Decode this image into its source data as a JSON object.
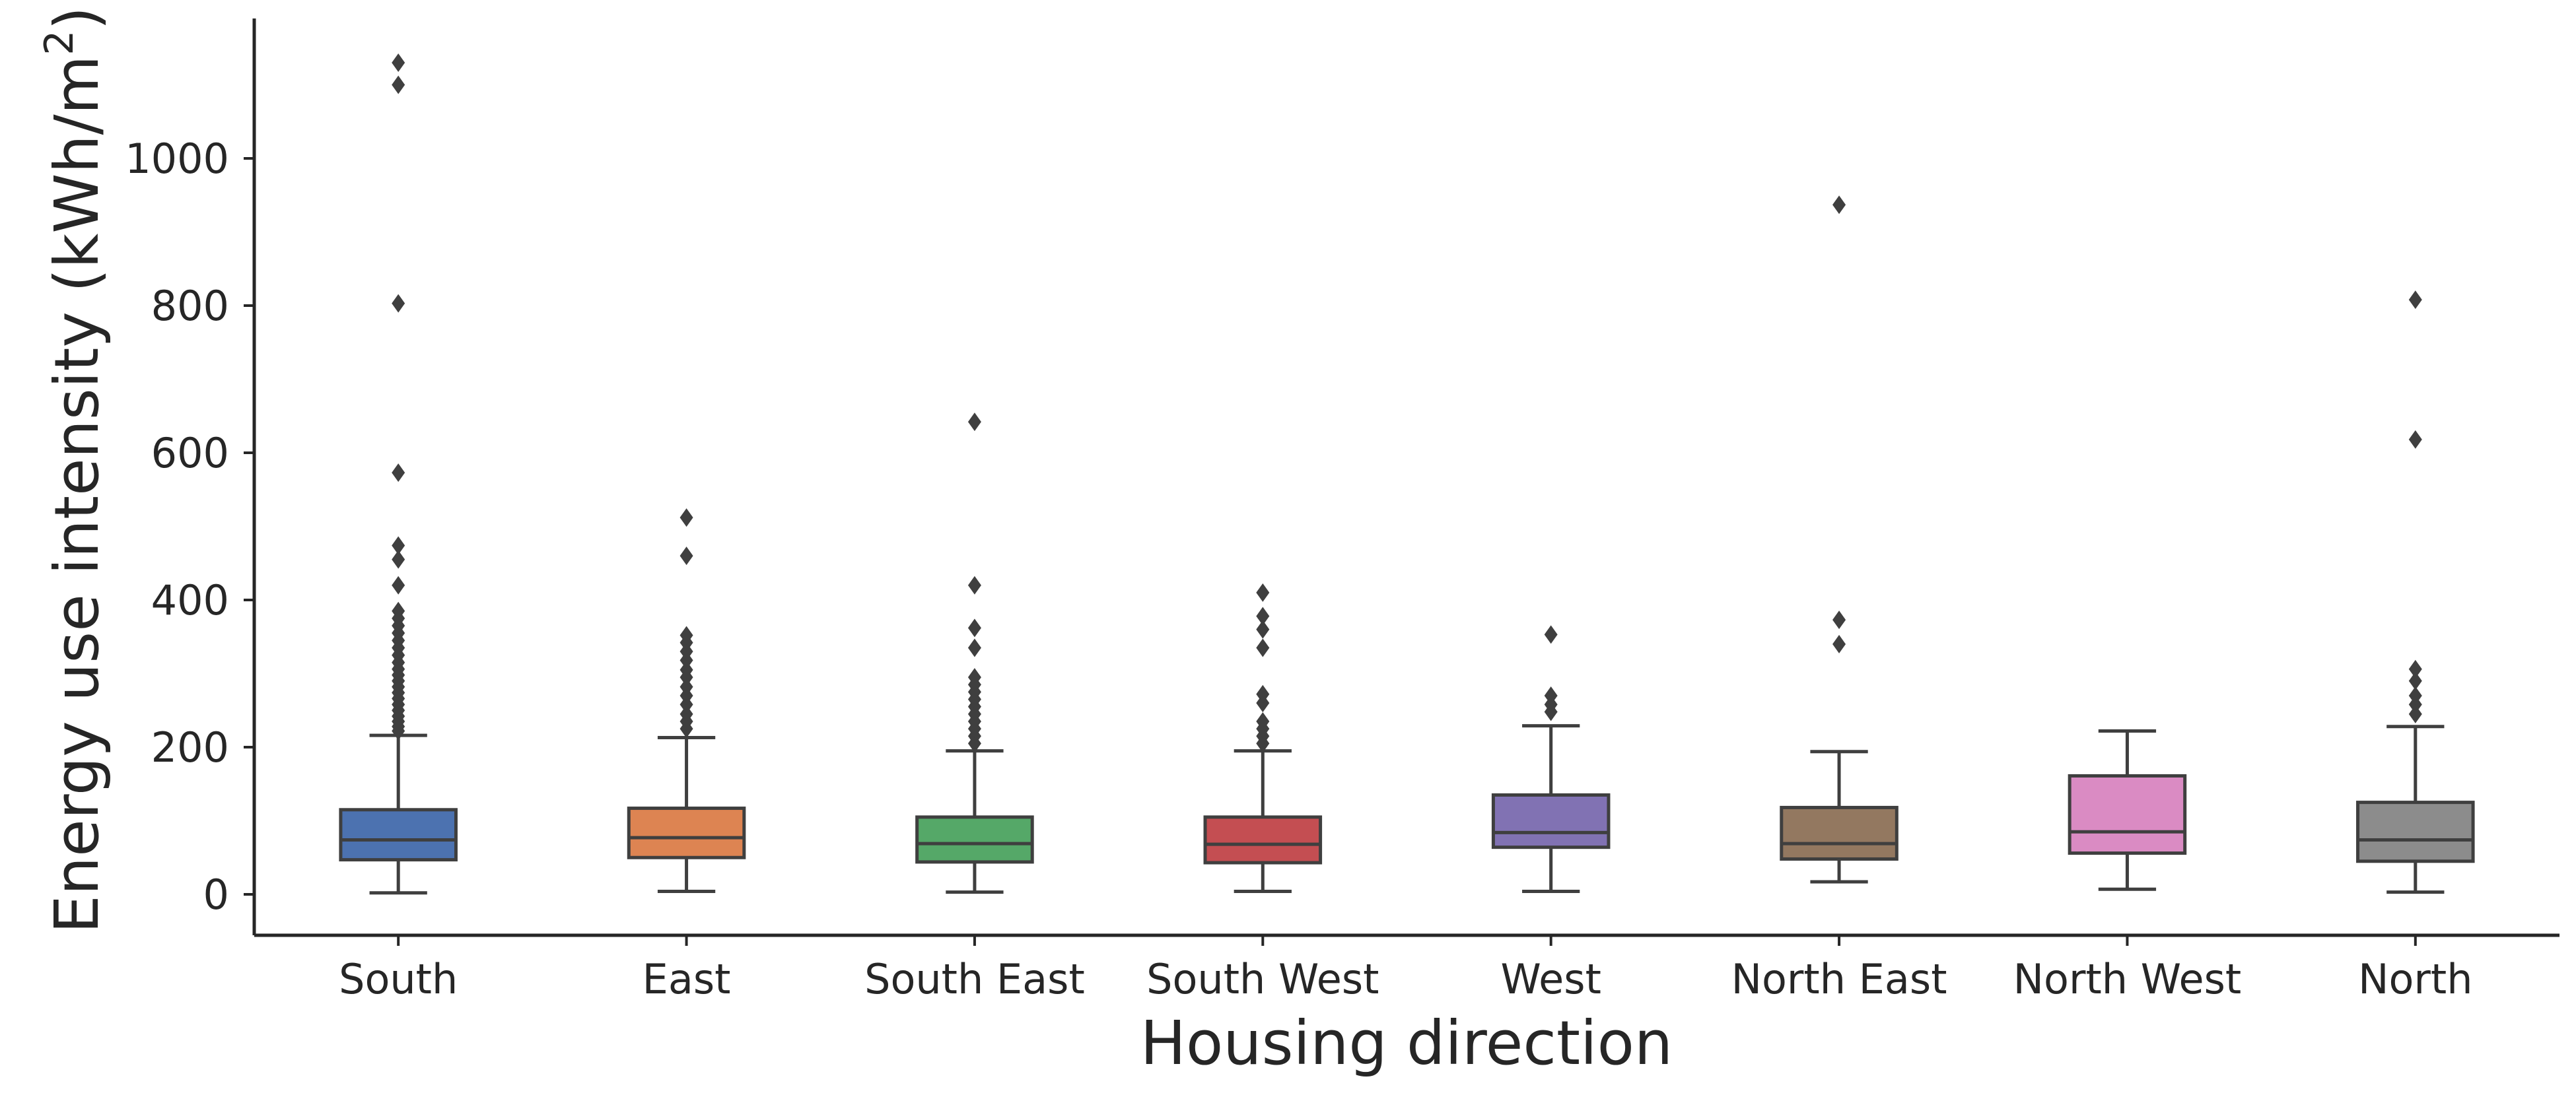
{
  "chart_data": {
    "type": "box",
    "xlabel": "Housing direction",
    "ylabel": "Energy use intensity (kWh/m",
    "ylabel_superscript": "2",
    "ylabel_close": ")",
    "yticks": [
      0,
      200,
      400,
      600,
      800,
      1000
    ],
    "ylim": [
      -55,
      1185
    ],
    "grid": false,
    "categories": [
      "South",
      "East",
      "South East",
      "South West",
      "West",
      "North East",
      "North West",
      "North"
    ],
    "colors": [
      "#4c72b0",
      "#dd8452",
      "#55a868",
      "#c44e52",
      "#8172b3",
      "#937860",
      "#da8bc3",
      "#8c8c8c"
    ],
    "boxes": [
      {
        "name": "South",
        "whislo": 2,
        "q1": 47,
        "median": 74,
        "q3": 115,
        "whishi": 216,
        "fliers": [
          222,
          228,
          235,
          242,
          250,
          258,
          266,
          274,
          282,
          290,
          298,
          306,
          315,
          325,
          335,
          345,
          355,
          365,
          375,
          385,
          420,
          455,
          474,
          573,
          803,
          1100,
          1130
        ]
      },
      {
        "name": "East",
        "whislo": 4,
        "q1": 50,
        "median": 77,
        "q3": 117,
        "whishi": 213,
        "fliers": [
          225,
          235,
          245,
          258,
          270,
          282,
          295,
          305,
          318,
          330,
          342,
          352,
          460,
          512
        ]
      },
      {
        "name": "South East",
        "whislo": 3,
        "q1": 44,
        "median": 69,
        "q3": 105,
        "whishi": 195,
        "fliers": [
          205,
          215,
          225,
          235,
          245,
          255,
          265,
          275,
          285,
          295,
          335,
          362,
          420,
          642
        ]
      },
      {
        "name": "South West",
        "whislo": 4,
        "q1": 43,
        "median": 68,
        "q3": 105,
        "whishi": 195,
        "fliers": [
          205,
          215,
          225,
          235,
          260,
          272,
          335,
          360,
          378,
          410
        ]
      },
      {
        "name": "West",
        "whislo": 4,
        "q1": 64,
        "median": 84,
        "q3": 135,
        "whishi": 229,
        "fliers": [
          248,
          258,
          270,
          353
        ]
      },
      {
        "name": "North East",
        "whislo": 17,
        "q1": 48,
        "median": 69,
        "q3": 118,
        "whishi": 194,
        "fliers": [
          340,
          373,
          937
        ]
      },
      {
        "name": "North West",
        "whislo": 7,
        "q1": 56,
        "median": 85,
        "q3": 161,
        "whishi": 222,
        "fliers": []
      },
      {
        "name": "North",
        "whislo": 3,
        "q1": 45,
        "median": 74,
        "q3": 125,
        "whishi": 228,
        "fliers": [
          245,
          258,
          270,
          290,
          306,
          618,
          808
        ]
      }
    ]
  }
}
